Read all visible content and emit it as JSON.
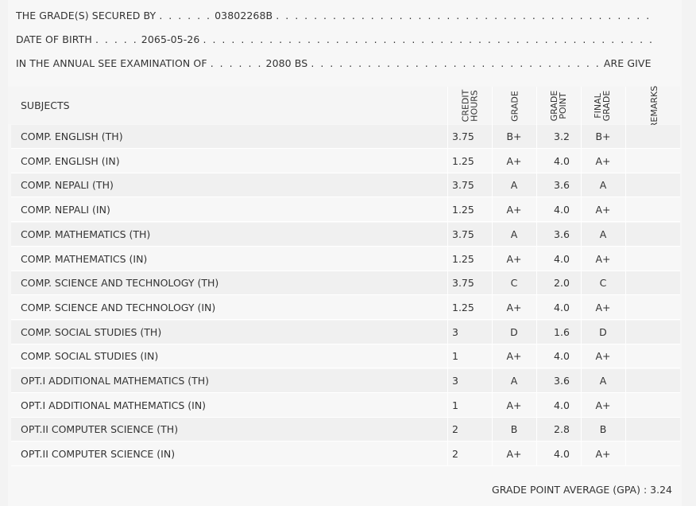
{
  "header": {
    "line1_label": "THE GRADE(S) SECURED BY",
    "line1_lead": ". . . . . .",
    "symbol_no": "03802268B",
    "line1_trail": ". . . . . . . . . . . . . . . . . . . . . . . . . . . . . . . . . . . . . . . . . . . . . . . . . . . . . . . .",
    "line2_label": "DATE OF BIRTH",
    "line2_lead": ". . . . .",
    "dob": "2065-05-26",
    "line2_trail": ". . . . . . . . . . . . . . . . . . . . . . . . . . . . . . . . . . . . . . . . . . . . . . . . . . . . . . . . . . . . . . . . . . .",
    "line3_label": "IN THE ANNUAL SEE EXAMINATION OF",
    "line3_lead": ". . . . . .",
    "exam_year": "2080 BS",
    "line3_trail": ". . . . . . . . . . . . . . . . . . . . . . . . . . . . . . .",
    "line3_end": "ARE GIVEN BELOW . . ."
  },
  "table": {
    "columns": {
      "subjects": "SUBJECTS",
      "credit_hours": "CREDIT\nHOURS",
      "grade": "GRADE",
      "grade_point": "GRADE\nPOINT",
      "final_grade": "FINAL\nGRADE",
      "remarks": "REMARKS"
    },
    "rows": [
      {
        "subject": "COMP. ENGLISH (TH)",
        "credit": "3.75",
        "grade": "B+",
        "gp": "3.2",
        "final": "B+"
      },
      {
        "subject": "COMP. ENGLISH (IN)",
        "credit": "1.25",
        "grade": "A+",
        "gp": "4.0",
        "final": "A+"
      },
      {
        "subject": "COMP. NEPALI (TH)",
        "credit": "3.75",
        "grade": "A",
        "gp": "3.6",
        "final": "A"
      },
      {
        "subject": "COMP. NEPALI (IN)",
        "credit": "1.25",
        "grade": "A+",
        "gp": "4.0",
        "final": "A+"
      },
      {
        "subject": "COMP. MATHEMATICS (TH)",
        "credit": "3.75",
        "grade": "A",
        "gp": "3.6",
        "final": "A"
      },
      {
        "subject": "COMP. MATHEMATICS (IN)",
        "credit": "1.25",
        "grade": "A+",
        "gp": "4.0",
        "final": "A+"
      },
      {
        "subject": "COMP. SCIENCE AND TECHNOLOGY (TH)",
        "credit": "3.75",
        "grade": "C",
        "gp": "2.0",
        "final": "C"
      },
      {
        "subject": "COMP. SCIENCE AND TECHNOLOGY (IN)",
        "credit": "1.25",
        "grade": "A+",
        "gp": "4.0",
        "final": "A+"
      },
      {
        "subject": "COMP. SOCIAL STUDIES (TH)",
        "credit": "3",
        "grade": "D",
        "gp": "1.6",
        "final": "D"
      },
      {
        "subject": "COMP. SOCIAL STUDIES (IN)",
        "credit": "1",
        "grade": "A+",
        "gp": "4.0",
        "final": "A+"
      },
      {
        "subject": "OPT.I ADDITIONAL MATHEMATICS (TH)",
        "credit": "3",
        "grade": "A",
        "gp": "3.6",
        "final": "A"
      },
      {
        "subject": "OPT.I ADDITIONAL MATHEMATICS (IN)",
        "credit": "1",
        "grade": "A+",
        "gp": "4.0",
        "final": "A+"
      },
      {
        "subject": "OPT.II COMPUTER SCIENCE (TH)",
        "credit": "2",
        "grade": "B",
        "gp": "2.8",
        "final": "B"
      },
      {
        "subject": "OPT.II COMPUTER SCIENCE (IN)",
        "credit": "2",
        "grade": "A+",
        "gp": "4.0",
        "final": "A+"
      }
    ]
  },
  "gpa": {
    "label": "GRADE POINT AVERAGE (GPA) :",
    "value": "3.24"
  }
}
